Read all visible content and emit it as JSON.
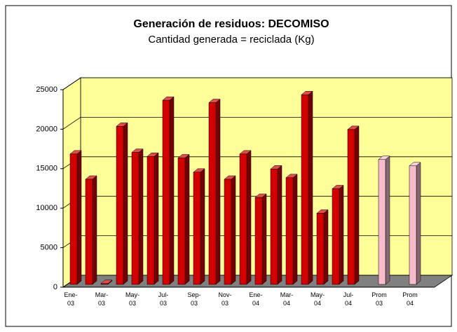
{
  "chart_data": {
    "type": "bar3d",
    "title": "Generación de residuos: DECOMISO",
    "subtitle": "Cantidad generada = reciclada (Kg)",
    "categories": [
      "Ene-03",
      null,
      "Mar-03",
      null,
      "May-03",
      null,
      "Jul-03",
      null,
      "Sep-03",
      null,
      "Nov-03",
      null,
      "Ene-04",
      null,
      "Mar-04",
      null,
      "May-04",
      null,
      "Jul-04",
      null,
      "Prom 03",
      null,
      "Prom 04"
    ],
    "values": [
      16500,
      13300,
      100,
      20000,
      16700,
      16200,
      23300,
      16000,
      14200,
      23000,
      13300,
      16500,
      11000,
      14600,
      13500,
      24000,
      9000,
      12100,
      19600,
      null,
      15800,
      null,
      15000
    ],
    "colors": [
      "#d40000",
      "#d40000",
      "#d40000",
      "#d40000",
      "#d40000",
      "#d40000",
      "#d40000",
      "#d40000",
      "#d40000",
      "#d40000",
      "#d40000",
      "#d40000",
      "#d40000",
      "#d40000",
      "#d40000",
      "#d40000",
      "#d40000",
      "#d40000",
      "#d40000",
      null,
      "#f6bccb",
      null,
      "#f6bccb"
    ],
    "ylim": [
      0,
      25000
    ],
    "yticks": [
      0,
      5000,
      10000,
      15000,
      20000,
      25000
    ],
    "grid": true
  }
}
